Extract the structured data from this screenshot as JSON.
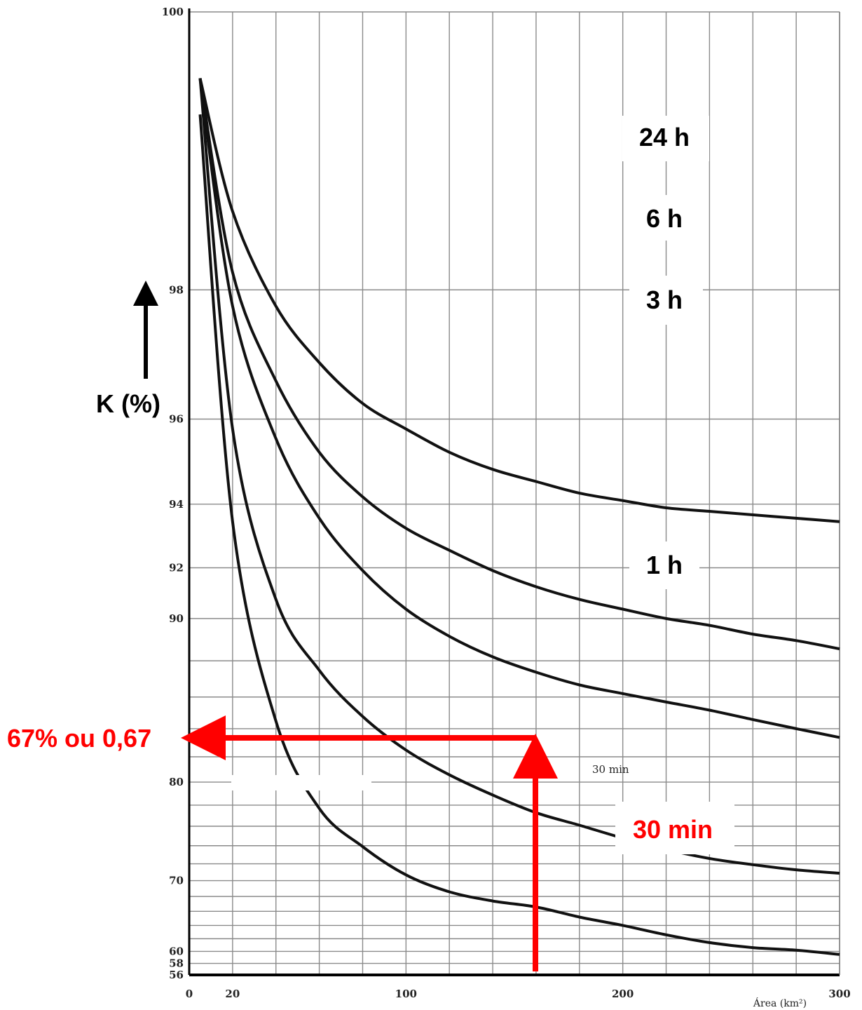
{
  "chart_data": {
    "type": "line",
    "xlabel": "Área (km²)",
    "ylabel": "K (%)",
    "xlim": [
      0,
      300
    ],
    "ylim": [
      56,
      100
    ],
    "x_ticks": [
      "0",
      "20",
      "100",
      "200",
      "300"
    ],
    "x_tick_values": [
      0,
      20,
      100,
      200,
      300
    ],
    "y_ticks": [
      "56",
      "58",
      "60",
      "70",
      "80",
      "90",
      "92",
      "94",
      "96",
      "98",
      "100"
    ],
    "y_tick_values": [
      56,
      58,
      60,
      70,
      80,
      90,
      92,
      94,
      96,
      98,
      100
    ],
    "grid": true,
    "series": [
      {
        "name": "24 h",
        "x": [
          5,
          20,
          40,
          60,
          80,
          100,
          120,
          140,
          160,
          180,
          200,
          220,
          240,
          260,
          280,
          300
        ],
        "y": [
          99.7,
          98.8,
          97.8,
          97.0,
          96.3,
          95.8,
          95.3,
          94.9,
          94.6,
          94.3,
          94.1,
          93.9,
          93.8,
          93.7,
          93.6,
          93.5
        ]
      },
      {
        "name": "6 h",
        "x": [
          5,
          20,
          40,
          60,
          80,
          100,
          120,
          140,
          160,
          180,
          200,
          220,
          240,
          260,
          280,
          300
        ],
        "y": [
          99.7,
          98.2,
          96.7,
          95.3,
          94.2,
          93.3,
          92.6,
          91.9,
          91.3,
          90.8,
          90.4,
          90.0,
          89.7,
          89.3,
          89.0,
          88.6
        ]
      },
      {
        "name": "3 h",
        "x": [
          5,
          20,
          40,
          60,
          80,
          100,
          120,
          140,
          160,
          180,
          200,
          220,
          240,
          260,
          280,
          300
        ],
        "y": [
          99.7,
          97.8,
          95.6,
          93.6,
          91.9,
          90.4,
          89.2,
          88.2,
          87.4,
          86.7,
          86.2,
          85.7,
          85.2,
          84.6,
          84.0,
          83.4
        ]
      },
      {
        "name": "1 h",
        "x": [
          5,
          20,
          40,
          60,
          80,
          100,
          120,
          140,
          160,
          180,
          200,
          220,
          240,
          260,
          280,
          300
        ],
        "y": [
          99.7,
          95.8,
          90.8,
          87.5,
          84.8,
          82.5,
          80.6,
          78.9,
          77.3,
          76.1,
          74.8,
          73.6,
          72.6,
          71.9,
          71.3,
          70.9
        ]
      },
      {
        "name": "30 min",
        "x": [
          5,
          20,
          40,
          60,
          80,
          100,
          120,
          140,
          160,
          180,
          200,
          220,
          240,
          260,
          280,
          300
        ],
        "y": [
          99.5,
          93.5,
          84.5,
          77.7,
          73.9,
          70.7,
          68.6,
          67.4,
          66.6,
          65.2,
          64.0,
          62.6,
          61.4,
          60.6,
          60.2,
          59.5
        ]
      }
    ],
    "annotations": [
      {
        "text": "67% ou 0,67",
        "x": 0,
        "y": 67,
        "color": "#ff0000"
      },
      {
        "text": "30 min",
        "color": "#ff0000"
      },
      {
        "text": "30 min"
      }
    ],
    "reading": {
      "x": 160,
      "y": 67,
      "series": "30 min"
    }
  }
}
